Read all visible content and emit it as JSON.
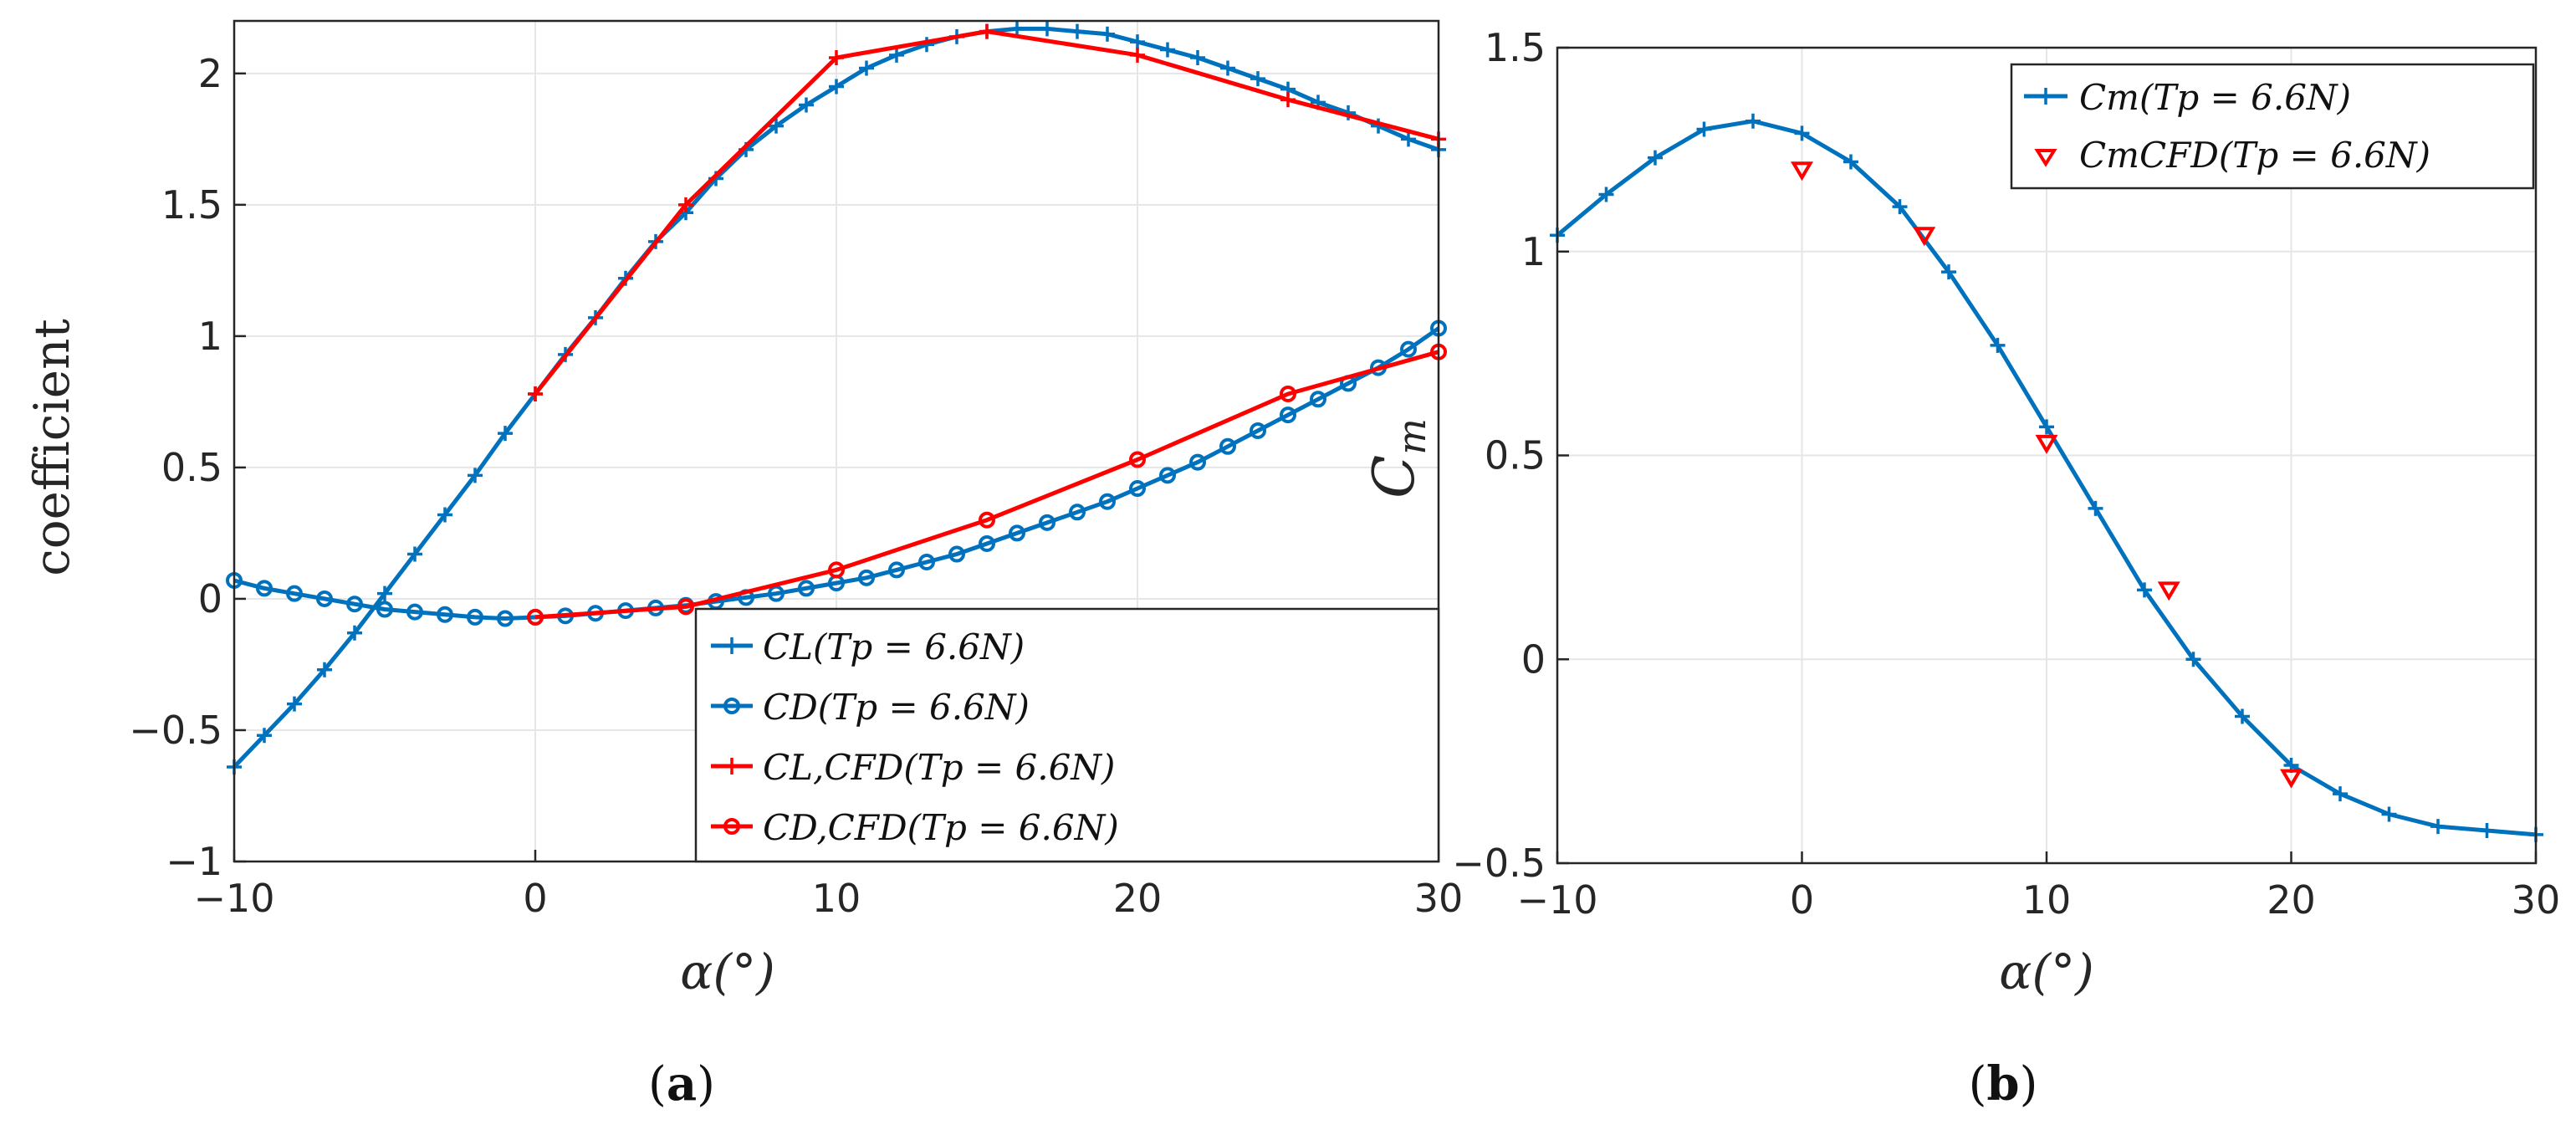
{
  "colors": {
    "blue": "#0072BD",
    "red": "#FF0000",
    "axis": "#262626",
    "grid": "#e6e6e6"
  },
  "chart_data": [
    {
      "type": "line",
      "panel": "a",
      "caption": "(a)",
      "caption_parts": {
        "open": "(",
        "letter": "a",
        "close": ")"
      },
      "xlabel": "α(°)",
      "ylabel": "coefficient",
      "xlim": [
        -10,
        30
      ],
      "ylim": [
        -1,
        2.2
      ],
      "xticks": [
        -10,
        0,
        10,
        20,
        30
      ],
      "xtick_labels": [
        "−10",
        "0",
        "10",
        "20",
        "30"
      ],
      "yticks": [
        -1,
        -0.5,
        0,
        0.5,
        1,
        1.5,
        2
      ],
      "ytick_labels": [
        "−1",
        "−0.5",
        "0",
        "0.5",
        "1",
        "1.5",
        "2"
      ],
      "grid": true,
      "legend_position": "bottom-right",
      "series": [
        {
          "name": "C_L(T_p = 6.6N)",
          "label": "CL(Tp = 6.6N)",
          "color": "#0072BD",
          "marker": "plus",
          "line": "solid",
          "x": [
            -10,
            -9,
            -8,
            -7,
            -6,
            -5,
            -4,
            -3,
            -2,
            -1,
            0,
            1,
            2,
            3,
            4,
            5,
            6,
            7,
            8,
            9,
            10,
            11,
            12,
            13,
            14,
            15,
            16,
            17,
            18,
            19,
            20,
            21,
            22,
            23,
            24,
            25,
            26,
            27,
            28,
            29,
            30
          ],
          "y": [
            -0.64,
            -0.52,
            -0.4,
            -0.27,
            -0.13,
            0.02,
            0.17,
            0.32,
            0.47,
            0.63,
            0.78,
            0.93,
            1.07,
            1.22,
            1.36,
            1.47,
            1.6,
            1.71,
            1.8,
            1.88,
            1.95,
            2.02,
            2.07,
            2.11,
            2.14,
            2.16,
            2.17,
            2.17,
            2.16,
            2.15,
            2.12,
            2.09,
            2.06,
            2.02,
            1.98,
            1.94,
            1.89,
            1.85,
            1.8,
            1.75,
            1.71
          ]
        },
        {
          "name": "C_D(T_p = 6.6N)",
          "label": "CD(Tp = 6.6N)",
          "color": "#0072BD",
          "marker": "circle",
          "line": "solid",
          "x": [
            -10,
            -9,
            -8,
            -7,
            -6,
            -5,
            -4,
            -3,
            -2,
            -1,
            0,
            1,
            2,
            3,
            4,
            5,
            6,
            7,
            8,
            9,
            10,
            11,
            12,
            13,
            14,
            15,
            16,
            17,
            18,
            19,
            20,
            21,
            22,
            23,
            24,
            25,
            26,
            27,
            28,
            29,
            30
          ],
          "y": [
            0.07,
            0.04,
            0.02,
            0.0,
            -0.02,
            -0.04,
            -0.05,
            -0.06,
            -0.07,
            -0.075,
            -0.07,
            -0.065,
            -0.055,
            -0.045,
            -0.035,
            -0.025,
            -0.01,
            0.005,
            0.02,
            0.04,
            0.06,
            0.08,
            0.11,
            0.14,
            0.17,
            0.21,
            0.25,
            0.29,
            0.33,
            0.37,
            0.42,
            0.47,
            0.52,
            0.58,
            0.64,
            0.7,
            0.76,
            0.82,
            0.88,
            0.95,
            1.03
          ]
        },
        {
          "name": "C_L,CFD(T_p = 6.6N)",
          "label": "CL,CFD(Tp = 6.6N)",
          "color": "#FF0000",
          "marker": "plus",
          "line": "solid",
          "x": [
            0,
            5,
            10,
            15,
            20,
            25,
            30
          ],
          "y": [
            0.78,
            1.5,
            2.06,
            2.16,
            2.07,
            1.9,
            1.75
          ]
        },
        {
          "name": "C_D,CFD(T_p = 6.6N)",
          "label": "CD,CFD(Tp = 6.6N)",
          "color": "#FF0000",
          "marker": "circle",
          "line": "solid",
          "x": [
            0,
            5,
            10,
            15,
            20,
            25,
            30
          ],
          "y": [
            -0.07,
            -0.03,
            0.11,
            0.3,
            0.53,
            0.78,
            0.94
          ]
        }
      ]
    },
    {
      "type": "line",
      "panel": "b",
      "caption": "(b)",
      "caption_parts": {
        "open": "(",
        "letter": "b",
        "close": ")"
      },
      "xlabel": "α(°)",
      "ylabel": "Cm",
      "xlim": [
        -10,
        30
      ],
      "ylim": [
        -0.5,
        1.5
      ],
      "xticks": [
        -10,
        0,
        10,
        20,
        30
      ],
      "xtick_labels": [
        "−10",
        "0",
        "10",
        "20",
        "30"
      ],
      "yticks": [
        -0.5,
        0,
        0.5,
        1,
        1.5
      ],
      "ytick_labels": [
        "−0.5",
        "0",
        "0.5",
        "1",
        "1.5"
      ],
      "grid": true,
      "legend_position": "top-right",
      "series": [
        {
          "name": "Cm(T_p = 6.6N)",
          "label": "Cm(Tp = 6.6N)",
          "color": "#0072BD",
          "marker": "plus",
          "line": "solid",
          "x": [
            -10,
            -8,
            -6,
            -4,
            -2,
            0,
            2,
            4,
            6,
            8,
            10,
            12,
            14,
            16,
            18,
            20,
            22,
            24,
            26,
            28,
            30
          ],
          "y": [
            1.04,
            1.14,
            1.23,
            1.3,
            1.32,
            1.29,
            1.22,
            1.11,
            0.95,
            0.77,
            0.57,
            0.37,
            0.17,
            0.0,
            -0.14,
            -0.26,
            -0.33,
            -0.38,
            -0.41,
            -0.42,
            -0.43
          ]
        },
        {
          "name": "Cm_CFD(T_p = 6.6N)",
          "label": "CmCFD(Tp = 6.6N)",
          "color": "#FF0000",
          "marker": "triangle-down",
          "line": "none",
          "x": [
            0,
            5,
            10,
            15,
            20
          ],
          "y": [
            1.2,
            1.04,
            0.53,
            0.17,
            -0.29
          ]
        }
      ]
    }
  ]
}
